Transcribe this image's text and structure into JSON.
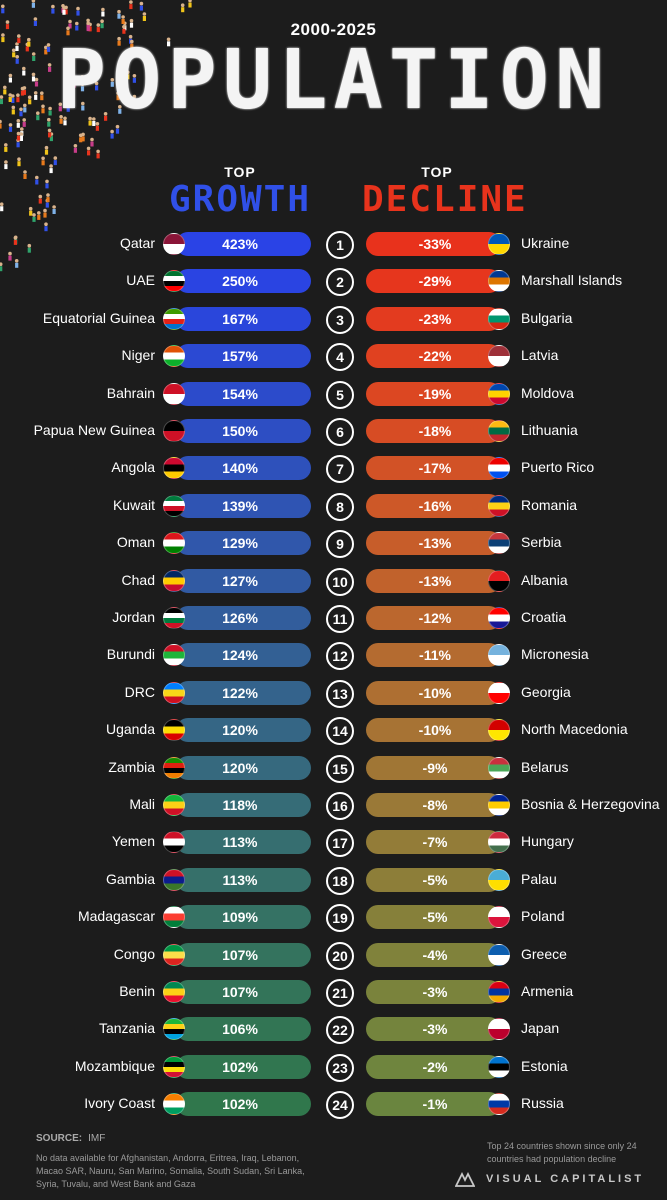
{
  "header": {
    "years": "2000-2025",
    "title": "POPULATION",
    "growth_top": "TOP",
    "growth_label": "GROWTH",
    "decline_top": "TOP",
    "decline_label": "DECLINE"
  },
  "colors": {
    "background": "#1c1c1c",
    "growth_accent": "#3050e8",
    "decline_accent": "#e8331c"
  },
  "chart_data": {
    "type": "table",
    "title": "POPULATION",
    "subtitle": "2000-2025",
    "ranks": [
      1,
      2,
      3,
      4,
      5,
      6,
      7,
      8,
      9,
      10,
      11,
      12,
      13,
      14,
      15,
      16,
      17,
      18,
      19,
      20,
      21,
      22,
      23,
      24
    ],
    "growth": [
      {
        "country": "Qatar",
        "value": 423,
        "label": "423%",
        "flag": [
          "#8a1538",
          "#ffffff"
        ],
        "bar": "#2a43e6"
      },
      {
        "country": "UAE",
        "value": 250,
        "label": "250%",
        "flag": [
          "#00732f",
          "#ffffff",
          "#000000",
          "#ff0000"
        ],
        "bar": "#2a44e2"
      },
      {
        "country": "Equatorial Guinea",
        "value": 167,
        "label": "167%",
        "flag": [
          "#3e9a00",
          "#ffffff",
          "#e32118",
          "#0073ce"
        ],
        "bar": "#2a46db"
      },
      {
        "country": "Niger",
        "value": 157,
        "label": "157%",
        "flag": [
          "#e05206",
          "#ffffff",
          "#0db02b"
        ],
        "bar": "#2b49d3"
      },
      {
        "country": "Bahrain",
        "value": 154,
        "label": "154%",
        "flag": [
          "#ce1126",
          "#ffffff"
        ],
        "bar": "#2c4bcb"
      },
      {
        "country": "Papua New Guinea",
        "value": 150,
        "label": "150%",
        "flag": [
          "#000000",
          "#ce1126"
        ],
        "bar": "#2d4ec3"
      },
      {
        "country": "Angola",
        "value": 140,
        "label": "140%",
        "flag": [
          "#cc092f",
          "#000000",
          "#ffcb00"
        ],
        "bar": "#2e51bb"
      },
      {
        "country": "Kuwait",
        "value": 139,
        "label": "139%",
        "flag": [
          "#007a3d",
          "#ffffff",
          "#ce1126",
          "#000000"
        ],
        "bar": "#2f54b3"
      },
      {
        "country": "Oman",
        "value": 129,
        "label": "129%",
        "flag": [
          "#db161b",
          "#ffffff",
          "#008000"
        ],
        "bar": "#3057ab"
      },
      {
        "country": "Chad",
        "value": 127,
        "label": "127%",
        "flag": [
          "#002664",
          "#fecb00",
          "#c60c30"
        ],
        "bar": "#315aa3"
      },
      {
        "country": "Jordan",
        "value": 126,
        "label": "126%",
        "flag": [
          "#000000",
          "#ffffff",
          "#007a3d",
          "#ce1126"
        ],
        "bar": "#325d9c"
      },
      {
        "country": "Burundi",
        "value": 124,
        "label": "124%",
        "flag": [
          "#ce1126",
          "#1eb53a",
          "#ffffff"
        ],
        "bar": "#336094"
      },
      {
        "country": "DRC",
        "value": 122,
        "label": "122%",
        "flag": [
          "#007fff",
          "#f7d618",
          "#ce1021"
        ],
        "bar": "#34638c"
      },
      {
        "country": "Uganda",
        "value": 120,
        "label": "120%",
        "flag": [
          "#000000",
          "#fcdc04",
          "#d90000"
        ],
        "bar": "#356685"
      },
      {
        "country": "Zambia",
        "value": 120,
        "label": "120%",
        "flag": [
          "#198a00",
          "#de2010",
          "#000000",
          "#ef7d00"
        ],
        "bar": "#36697e"
      },
      {
        "country": "Mali",
        "value": 118,
        "label": "118%",
        "flag": [
          "#14b53a",
          "#fcd116",
          "#ce1126"
        ],
        "bar": "#366c77"
      },
      {
        "country": "Yemen",
        "value": 113,
        "label": "113%",
        "flag": [
          "#ce1126",
          "#ffffff",
          "#000000"
        ],
        "bar": "#366e70"
      },
      {
        "country": "Gambia",
        "value": 113,
        "label": "113%",
        "flag": [
          "#ce1126",
          "#0c1c8c",
          "#3a7728"
        ],
        "bar": "#36706a"
      },
      {
        "country": "Madagascar",
        "value": 109,
        "label": "109%",
        "flag": [
          "#ffffff",
          "#fc3d32",
          "#007e3a"
        ],
        "bar": "#357264"
      },
      {
        "country": "Congo",
        "value": 107,
        "label": "107%",
        "flag": [
          "#009543",
          "#fbde4a",
          "#dc241f"
        ],
        "bar": "#34735e"
      },
      {
        "country": "Benin",
        "value": 107,
        "label": "107%",
        "flag": [
          "#008751",
          "#fcd116",
          "#e8112d"
        ],
        "bar": "#337459"
      },
      {
        "country": "Tanzania",
        "value": 106,
        "label": "106%",
        "flag": [
          "#1eb53a",
          "#fcd116",
          "#000000",
          "#00a3dd"
        ],
        "bar": "#327554"
      },
      {
        "country": "Mozambique",
        "value": 102,
        "label": "102%",
        "flag": [
          "#009739",
          "#000000",
          "#fcdd09",
          "#d21034"
        ],
        "bar": "#317650"
      },
      {
        "country": "Ivory Coast",
        "value": 102,
        "label": "102%",
        "flag": [
          "#f77f00",
          "#ffffff",
          "#009e60"
        ],
        "bar": "#30774c"
      }
    ],
    "decline": [
      {
        "country": "Ukraine",
        "value": -33,
        "label": "-33%",
        "flag": [
          "#0057b7",
          "#ffd700"
        ],
        "bar": "#e8321c"
      },
      {
        "country": "Marshall Islands",
        "value": -29,
        "label": "-29%",
        "flag": [
          "#003893",
          "#dd7500",
          "#ffffff"
        ],
        "bar": "#e6361d"
      },
      {
        "country": "Bulgaria",
        "value": -23,
        "label": "-23%",
        "flag": [
          "#ffffff",
          "#00966e",
          "#d62612"
        ],
        "bar": "#e33b1f"
      },
      {
        "country": "Latvia",
        "value": -22,
        "label": "-22%",
        "flag": [
          "#9e3039",
          "#ffffff"
        ],
        "bar": "#e04120"
      },
      {
        "country": "Moldova",
        "value": -19,
        "label": "-19%",
        "flag": [
          "#0046ae",
          "#ffd200",
          "#cc092f"
        ],
        "bar": "#dc4722"
      },
      {
        "country": "Lithuania",
        "value": -18,
        "label": "-18%",
        "flag": [
          "#fdb913",
          "#006a44",
          "#c1272d"
        ],
        "bar": "#d74c24"
      },
      {
        "country": "Puerto Rico",
        "value": -17,
        "label": "-17%",
        "flag": [
          "#ed0000",
          "#ffffff",
          "#0050f0"
        ],
        "bar": "#d25226"
      },
      {
        "country": "Romania",
        "value": -16,
        "label": "-16%",
        "flag": [
          "#002b7f",
          "#fcd116",
          "#ce1126"
        ],
        "bar": "#cd5828"
      },
      {
        "country": "Serbia",
        "value": -13,
        "label": "-13%",
        "flag": [
          "#c6363c",
          "#0c4076",
          "#ffffff"
        ],
        "bar": "#c75d2a"
      },
      {
        "country": "Albania",
        "value": -13,
        "label": "-13%",
        "flag": [
          "#e41e20",
          "#000000"
        ],
        "bar": "#c1622c"
      },
      {
        "country": "Croatia",
        "value": -12,
        "label": "-12%",
        "flag": [
          "#ff0000",
          "#ffffff",
          "#171796"
        ],
        "bar": "#bb672e"
      },
      {
        "country": "Micronesia",
        "value": -11,
        "label": "-11%",
        "flag": [
          "#75b2dd",
          "#ffffff"
        ],
        "bar": "#b46b30"
      },
      {
        "country": "Georgia",
        "value": -10,
        "label": "-10%",
        "flag": [
          "#ffffff",
          "#ff0000"
        ],
        "bar": "#ae6f32"
      },
      {
        "country": "North Macedonia",
        "value": -10,
        "label": "-10%",
        "flag": [
          "#d20000",
          "#ffe600"
        ],
        "bar": "#a77334"
      },
      {
        "country": "Belarus",
        "value": -9,
        "label": "-9%",
        "flag": [
          "#c8313e",
          "#4aa657",
          "#ffffff"
        ],
        "bar": "#a07635"
      },
      {
        "country": "Bosnia & Herzegovina",
        "value": -8,
        "label": "-8%",
        "flag": [
          "#002395",
          "#fecb00",
          "#ffffff"
        ],
        "bar": "#9a7937"
      },
      {
        "country": "Hungary",
        "value": -7,
        "label": "-7%",
        "flag": [
          "#cd2a3e",
          "#ffffff",
          "#436f4d"
        ],
        "bar": "#937c38"
      },
      {
        "country": "Palau",
        "value": -5,
        "label": "-5%",
        "flag": [
          "#4aadd6",
          "#ffde00"
        ],
        "bar": "#8d7e39"
      },
      {
        "country": "Poland",
        "value": -5,
        "label": "-5%",
        "flag": [
          "#ffffff",
          "#dc143c"
        ],
        "bar": "#86803a"
      },
      {
        "country": "Greece",
        "value": -4,
        "label": "-4%",
        "flag": [
          "#0d5eaf",
          "#ffffff"
        ],
        "bar": "#80823b"
      },
      {
        "country": "Armenia",
        "value": -3,
        "label": "-3%",
        "flag": [
          "#d90012",
          "#0033a0",
          "#f2a800"
        ],
        "bar": "#7a833c"
      },
      {
        "country": "Japan",
        "value": -3,
        "label": "-3%",
        "flag": [
          "#ffffff",
          "#bc002d"
        ],
        "bar": "#74843d"
      },
      {
        "country": "Estonia",
        "value": -2,
        "label": "-2%",
        "flag": [
          "#0072ce",
          "#000000",
          "#ffffff"
        ],
        "bar": "#6f853e"
      },
      {
        "country": "Russia",
        "value": -1,
        "label": "-1%",
        "flag": [
          "#ffffff",
          "#0039a6",
          "#d52b1e"
        ],
        "bar": "#6a853f"
      }
    ]
  },
  "footer": {
    "source_label": "SOURCE:",
    "source_value": "IMF",
    "no_data_note": "No data available for Afghanistan, Andorra, Eritrea, Iraq, Lebanon, Macao SAR, Nauru, San Marino, Somalia, South Sudan, Sri Lanka, Syria, Tuvalu, and West Bank and Gaza",
    "decline_note": "Top 24 countries shown since only 24 countries had population decline",
    "brand": "VISUAL CAPITALIST"
  }
}
